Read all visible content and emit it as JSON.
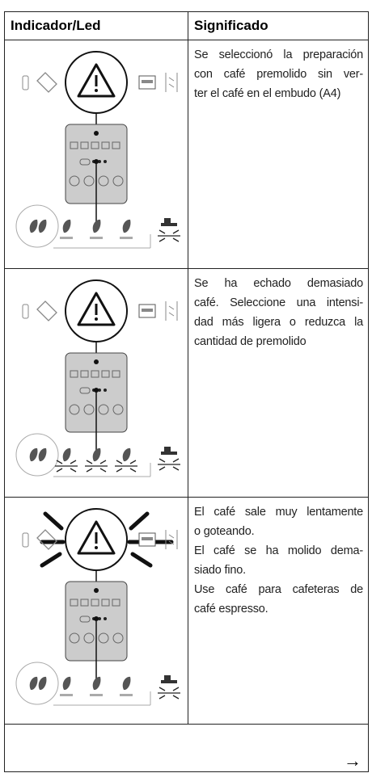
{
  "header": {
    "columns": [
      "Indicador/Led",
      "Significado"
    ]
  },
  "rows": [
    {
      "lines": [
        "Se seleccionó la preparación",
        "con café premolido sin ver-",
        "ter el café en el embudo (A4)"
      ]
    },
    {
      "lines": [
        "Se ha echado demasiado",
        "café. Seleccione una intensi-",
        "dad más ligera o reduzca la",
        "cantidad de premolido"
      ]
    },
    {
      "lines": [
        "El café sale muy lentamente",
        "o goteando.",
        "El café se ha molido dema-",
        "siado fino.",
        "Use café para cafeteras de",
        "café espresso."
      ]
    }
  ],
  "footer": {
    "arrow": "→"
  }
}
